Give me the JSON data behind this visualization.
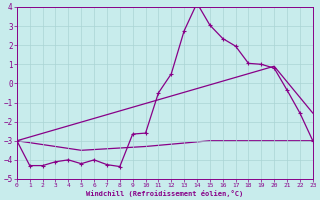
{
  "xlabel": "Windchill (Refroidissement éolien,°C)",
  "background_color": "#c8ecec",
  "grid_color": "#aad4d4",
  "line_color": "#880088",
  "x_min": 0,
  "x_max": 23,
  "y_min": -5,
  "y_max": 4,
  "x_ticks": [
    0,
    1,
    2,
    3,
    4,
    5,
    6,
    7,
    8,
    9,
    10,
    11,
    12,
    13,
    14,
    15,
    16,
    17,
    18,
    19,
    20,
    21,
    22,
    23
  ],
  "y_ticks": [
    -5,
    -4,
    -3,
    -2,
    -1,
    0,
    1,
    2,
    3,
    4
  ],
  "line1_x": [
    0,
    1,
    2,
    3,
    4,
    5,
    6,
    7,
    8,
    9,
    10,
    11,
    12,
    13,
    14,
    15,
    16,
    17,
    18,
    19,
    20,
    21,
    22,
    23
  ],
  "line1_y": [
    -3.0,
    -4.3,
    -4.3,
    -4.1,
    -4.0,
    -4.2,
    -4.0,
    -4.25,
    -4.35,
    -2.65,
    -2.6,
    -0.5,
    0.5,
    2.75,
    4.2,
    3.05,
    2.35,
    1.95,
    1.05,
    1.0,
    0.8,
    -0.35,
    -1.55,
    -3.0
  ],
  "line2_x": [
    0,
    20,
    23
  ],
  "line2_y": [
    -3.0,
    0.9,
    -1.55
  ],
  "line3_x": [
    0,
    5,
    10,
    15,
    20,
    23
  ],
  "line3_y": [
    -3.0,
    -3.5,
    -3.3,
    -3.0,
    -3.0,
    -3.0
  ]
}
